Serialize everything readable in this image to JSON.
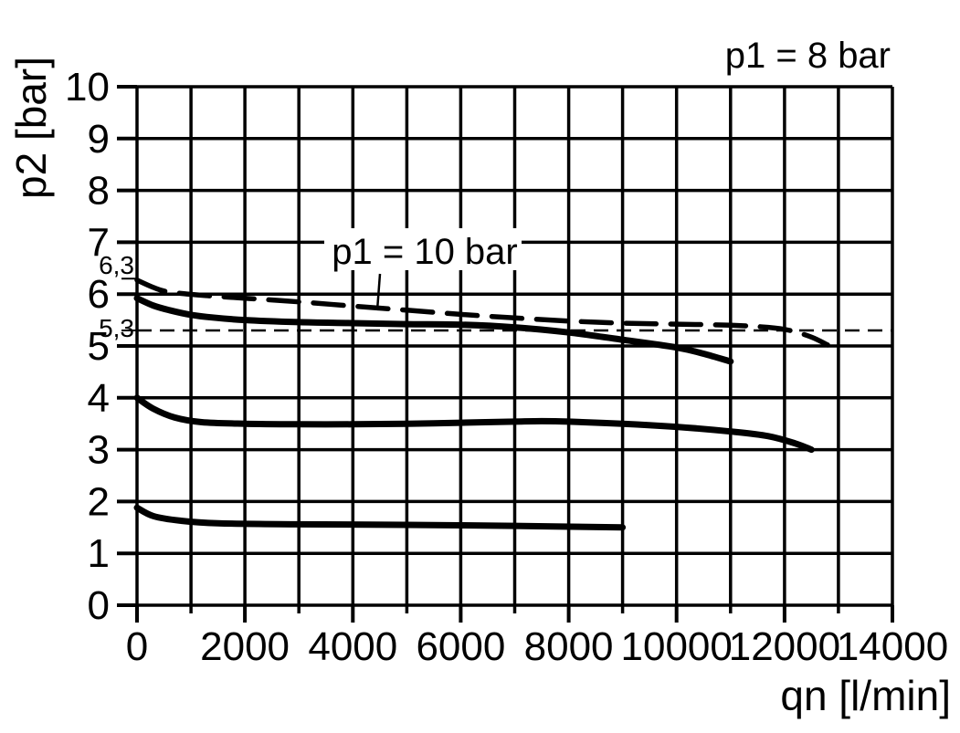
{
  "chart_data": {
    "type": "line",
    "background_color": "#ffffff",
    "line_color": "#000000",
    "xlabel": "qn [l/min]",
    "ylabel": "p2 [bar]",
    "xlim": [
      0,
      14000
    ],
    "ylim": [
      0,
      10
    ],
    "grid": true,
    "x_grid_step": 1000,
    "y_grid_step": 1,
    "x_major_values": [
      0,
      2000,
      4000,
      6000,
      8000,
      10000,
      12000,
      14000
    ],
    "x_tick_labels": [
      "0",
      "2000",
      "4000",
      "6000",
      "8000",
      "10000",
      "12000",
      "14000"
    ],
    "x_minor_values": [
      1000,
      3000,
      5000,
      7000,
      9000,
      11000,
      13000
    ],
    "y_tick_values": [
      0,
      1,
      2,
      3,
      4,
      5,
      6,
      7,
      8,
      9,
      10
    ],
    "y_tick_labels": [
      "0",
      "1",
      "2",
      "3",
      "4",
      "5",
      "6",
      "7",
      "8",
      "9",
      "10"
    ],
    "y_special_ticks": [
      {
        "value": 6.3,
        "label": "6,3"
      },
      {
        "value": 5.3,
        "label": "5,3"
      }
    ],
    "reference_line": {
      "value": 5.3,
      "style": "thin-dashed"
    },
    "annotations": [
      {
        "id": "p1-8bar-label",
        "text": "p1 = 8 bar",
        "position": "top-right"
      },
      {
        "id": "p1-10bar-label",
        "text": "p1 = 10 bar",
        "position": "above-dashed-curve",
        "leader_target": [
          4500,
          5.65
        ]
      }
    ],
    "series": [
      {
        "id": "curve-p1-10bar",
        "style": "bold-dashed",
        "points": [
          [
            0,
            6.27
          ],
          [
            300,
            6.13
          ],
          [
            600,
            6.04
          ],
          [
            1300,
            5.97
          ],
          [
            2000,
            5.92
          ],
          [
            3000,
            5.85
          ],
          [
            4000,
            5.77
          ],
          [
            5000,
            5.69
          ],
          [
            6000,
            5.61
          ],
          [
            7000,
            5.54
          ],
          [
            8000,
            5.48
          ],
          [
            9000,
            5.44
          ],
          [
            10000,
            5.42
          ],
          [
            11000,
            5.4
          ],
          [
            11700,
            5.36
          ],
          [
            12100,
            5.3
          ],
          [
            12500,
            5.17
          ],
          [
            12800,
            5.02
          ]
        ]
      },
      {
        "id": "curve-p1-8bar-high",
        "style": "solid",
        "points": [
          [
            0,
            5.92
          ],
          [
            300,
            5.78
          ],
          [
            600,
            5.69
          ],
          [
            1000,
            5.6
          ],
          [
            1400,
            5.55
          ],
          [
            2000,
            5.5
          ],
          [
            3000,
            5.46
          ],
          [
            4000,
            5.44
          ],
          [
            5000,
            5.42
          ],
          [
            6000,
            5.41
          ],
          [
            7000,
            5.36
          ],
          [
            8000,
            5.26
          ],
          [
            9000,
            5.12
          ],
          [
            10000,
            4.97
          ],
          [
            10500,
            4.85
          ],
          [
            11000,
            4.7
          ]
        ]
      },
      {
        "id": "curve-p1-8bar-mid",
        "style": "solid",
        "points": [
          [
            0,
            4.0
          ],
          [
            300,
            3.79
          ],
          [
            700,
            3.62
          ],
          [
            1200,
            3.53
          ],
          [
            2000,
            3.5
          ],
          [
            3000,
            3.49
          ],
          [
            4000,
            3.49
          ],
          [
            5000,
            3.5
          ],
          [
            6000,
            3.52
          ],
          [
            7000,
            3.54
          ],
          [
            7500,
            3.55
          ],
          [
            8000,
            3.54
          ],
          [
            9000,
            3.5
          ],
          [
            10000,
            3.44
          ],
          [
            11000,
            3.35
          ],
          [
            11700,
            3.26
          ],
          [
            12200,
            3.12
          ],
          [
            12500,
            3.0
          ]
        ]
      },
      {
        "id": "curve-p1-8bar-low",
        "style": "solid",
        "points": [
          [
            0,
            1.88
          ],
          [
            300,
            1.72
          ],
          [
            800,
            1.63
          ],
          [
            1500,
            1.58
          ],
          [
            3000,
            1.56
          ],
          [
            5000,
            1.55
          ],
          [
            7000,
            1.53
          ],
          [
            9000,
            1.5
          ]
        ]
      }
    ]
  }
}
